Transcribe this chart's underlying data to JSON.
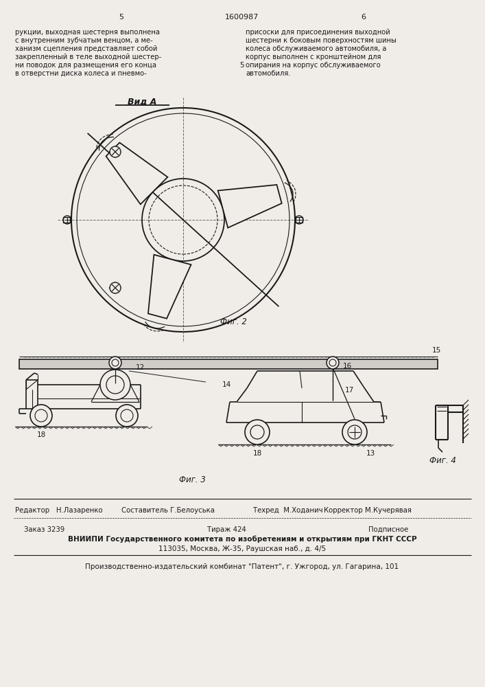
{
  "bg_color": "#f0ede8",
  "page_color": "#f0ede8",
  "header_col1_num": "5",
  "header_center": "1600987",
  "header_col2_num": "6",
  "left_text_lines": [
    "рукции, выходная шестерня выполнена",
    "с внутренним зубчатым венцом, а ме-",
    "ханизм сцепления представляет собой",
    "закрепленный в теле выходной шестер-",
    "ни поводок для размещения его конца",
    "в отверстни диска колеса и пневмо-"
  ],
  "right_text_lines": [
    "присоски для присоединения выходной",
    "шестерни к боковым поверхностям шины",
    "колеса обслуживаемого автомобиля, а",
    "корпус выполнен с кронштейном для",
    "опирания на корпус обслуживаемого",
    "автомобиля."
  ],
  "view_label": "Вид А",
  "fig2_label": "Фиг. 2",
  "fig3_label": "Фиг. 3",
  "fig4_label": "Фиг. 4",
  "footer_editor": "Редактор   Н.Лазаренко",
  "footer_composer": "Составитель Г.Белоуська",
  "footer_techred": "Техред  М.Ходанич",
  "footer_corrector": "Корректор М.Кучерявая",
  "footer_order": "Заказ 3239",
  "footer_tirazh": "Тираж 424",
  "footer_podpisnoe": "Подписное",
  "footer_vniiipi": "ВНИИПИ Государственного комитета по изобретениям и открытиям при ГКНТ СССР",
  "footer_address": "113035, Москва, Ж-35, Раушская наб., д. 4/5",
  "footer_kombinat": "Производственно-издательский комбинат \"Патент\", г. Ужгород, ул. Гагарина, 101",
  "line_color": "#1a1a1a",
  "text_color": "#1a1a1a"
}
